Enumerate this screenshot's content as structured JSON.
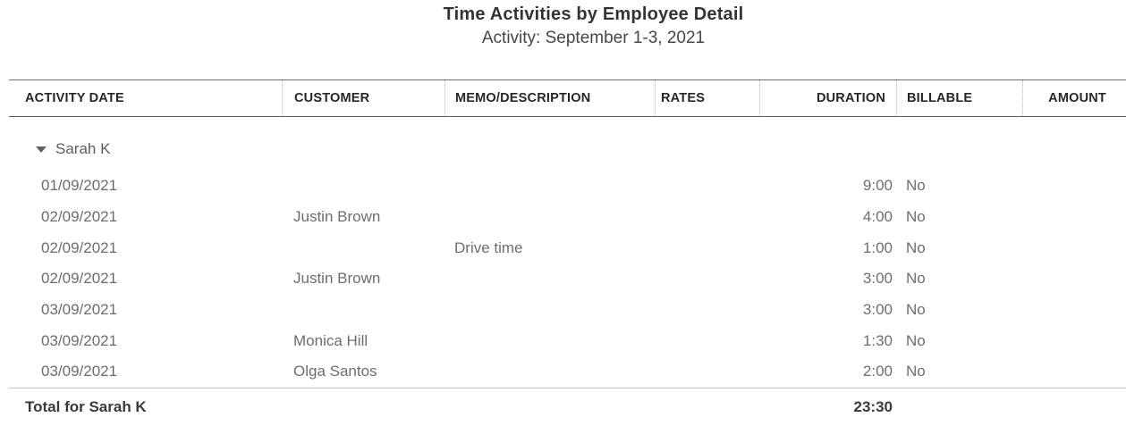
{
  "report": {
    "title": "Time Activities by Employee Detail",
    "subtitle": "Activity: September 1-3, 2021"
  },
  "table": {
    "columns": [
      {
        "key": "date",
        "label": "ACTIVITY DATE",
        "align": "left"
      },
      {
        "key": "customer",
        "label": "CUSTOMER",
        "align": "left"
      },
      {
        "key": "memo",
        "label": "MEMO/DESCRIPTION",
        "align": "left"
      },
      {
        "key": "rates",
        "label": "RATES",
        "align": "left"
      },
      {
        "key": "duration",
        "label": "DURATION",
        "align": "right"
      },
      {
        "key": "billable",
        "label": "BILLABLE",
        "align": "left"
      },
      {
        "key": "amount",
        "label": "AMOUNT",
        "align": "right"
      }
    ],
    "group": {
      "name": "Sarah K",
      "collapse_icon": "triangle-down",
      "expanded": true,
      "rows": [
        {
          "date": "01/09/2021",
          "customer": "",
          "memo": "",
          "rates": "",
          "duration": "9:00",
          "billable": "No",
          "amount": ""
        },
        {
          "date": "02/09/2021",
          "customer": "Justin Brown",
          "memo": "",
          "rates": "",
          "duration": "4:00",
          "billable": "No",
          "amount": ""
        },
        {
          "date": "02/09/2021",
          "customer": "",
          "memo": "Drive time",
          "rates": "",
          "duration": "1:00",
          "billable": "No",
          "amount": ""
        },
        {
          "date": "02/09/2021",
          "customer": "Justin Brown",
          "memo": "",
          "rates": "",
          "duration": "3:00",
          "billable": "No",
          "amount": ""
        },
        {
          "date": "03/09/2021",
          "customer": "",
          "memo": "",
          "rates": "",
          "duration": "3:00",
          "billable": "No",
          "amount": ""
        },
        {
          "date": "03/09/2021",
          "customer": "Monica Hill",
          "memo": "",
          "rates": "",
          "duration": "1:30",
          "billable": "No",
          "amount": ""
        },
        {
          "date": "03/09/2021",
          "customer": "Olga Santos",
          "memo": "",
          "rates": "",
          "duration": "2:00",
          "billable": "No",
          "amount": ""
        }
      ],
      "total": {
        "label": "Total for Sarah K",
        "duration": "23:30"
      }
    }
  },
  "colors": {
    "text_dark": "#26272b",
    "text_gray": "#6c6d72",
    "header_line": "#6f7072",
    "total_divider": "#c4c5c7",
    "dotted_separator": "#b9babc"
  }
}
